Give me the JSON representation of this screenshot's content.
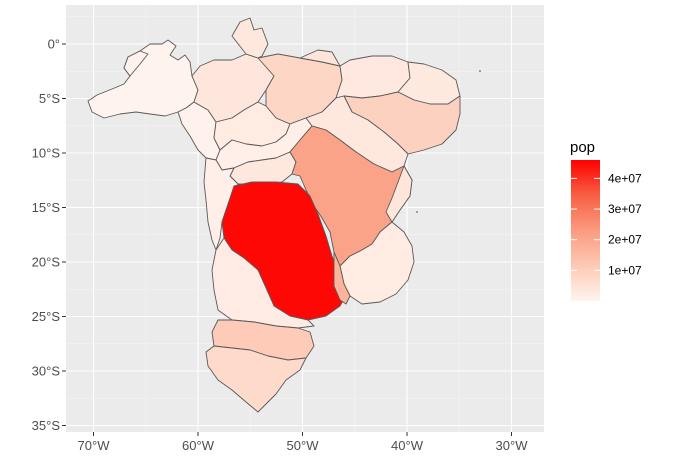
{
  "colors": {
    "panel_background": "#ebebeb",
    "grid_major": "#ffffff",
    "grid_minor": "#f5f5f5",
    "border": "#595959",
    "scale_low": "#fff5f0",
    "scale_high": "#ff0000"
  },
  "axes": {
    "x_ticks": [
      {
        "lon": -70,
        "label": "70°W"
      },
      {
        "lon": -60,
        "label": "60°W"
      },
      {
        "lon": -50,
        "label": "50°W"
      },
      {
        "lon": -40,
        "label": "40°W"
      },
      {
        "lon": -30,
        "label": "30°W"
      }
    ],
    "y_ticks": [
      {
        "lat": 0,
        "label": "0°"
      },
      {
        "lat": -5,
        "label": "5°S"
      },
      {
        "lat": -10,
        "label": "10°S"
      },
      {
        "lat": -15,
        "label": "15°S"
      },
      {
        "lat": -20,
        "label": "20°S"
      },
      {
        "lat": -25,
        "label": "25°S"
      },
      {
        "lat": -30,
        "label": "30°S"
      },
      {
        "lat": -35,
        "label": "35°S"
      }
    ]
  },
  "legend": {
    "title": "pop",
    "min": 0,
    "max": 46000000,
    "breaks": [
      {
        "value": 10000000,
        "label": "1e+07"
      },
      {
        "value": 20000000,
        "label": "2e+07"
      },
      {
        "value": 30000000,
        "label": "3e+07"
      },
      {
        "value": 40000000,
        "label": "4e+07"
      }
    ]
  },
  "chart_data": {
    "type": "map",
    "xlim": [
      -72,
      -25
    ],
    "ylim": [
      -35.5,
      3.5
    ],
    "fill_variable": "pop",
    "regions": [
      {
        "pop": 800000
      },
      {
        "pop": 500000
      },
      {
        "pop": 3800000
      },
      {
        "pop": 8000000
      },
      {
        "pop": 3500000
      },
      {
        "pop": 4500000
      },
      {
        "pop": 3300000
      },
      {
        "pop": 3200000
      },
      {
        "pop": 9300000
      },
      {
        "pop": 3500000
      },
      {
        "pop": 4000000
      },
      {
        "pop": 2700000
      },
      {
        "pop": 1600000
      },
      {
        "pop": 3400000
      },
      {
        "pop": 15000000
      },
      {
        "pop": 21000000
      },
      {
        "pop": 4000000
      },
      {
        "pop": 2700000
      },
      {
        "pop": 1600000
      },
      {
        "pop": 2500000
      },
      {
        "pop": 45000000
      },
      {
        "pop": 17000000
      },
      {
        "pop": 11000000
      },
      {
        "pop": 7000000
      },
      {
        "pop": 11000000
      },
      {
        "pop": 3000000
      },
      {
        "pop": 600000
      }
    ]
  }
}
